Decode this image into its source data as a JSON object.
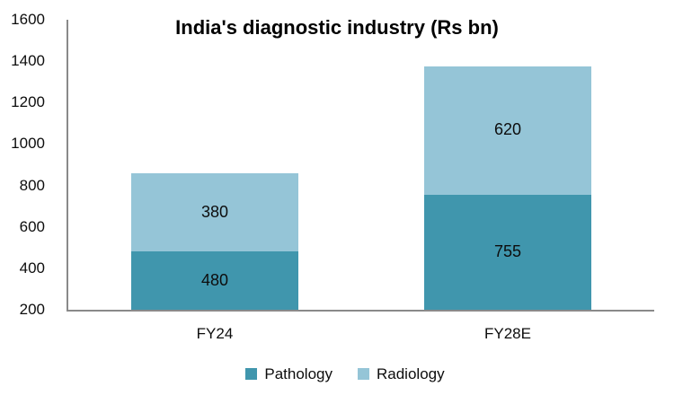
{
  "chart_data": {
    "type": "bar",
    "stacked": true,
    "title": "India's diagnostic industry (Rs bn)",
    "categories": [
      "FY24",
      "FY28E"
    ],
    "series": [
      {
        "name": "Pathology",
        "values": [
          480,
          755
        ],
        "color": "#4096ad"
      },
      {
        "name": "Radiology",
        "values": [
          380,
          620
        ],
        "color": "#95c5d7"
      }
    ],
    "totals": [
      860,
      1375
    ],
    "data_labels": [
      [
        480,
        755
      ],
      [
        380,
        620
      ]
    ],
    "y_axis": {
      "min": 200,
      "max": 1600,
      "tick_step": 200,
      "tick_labels": [
        "200",
        "400",
        "600",
        "800",
        "1000",
        "1200",
        "1400",
        "1600"
      ]
    },
    "xlabel": "",
    "ylabel": "",
    "gridlines": false,
    "legend_position": "bottom",
    "colors": {
      "axis_line": "#8a8a8a",
      "text": "#0d0d0d",
      "background": "#ffffff"
    }
  }
}
